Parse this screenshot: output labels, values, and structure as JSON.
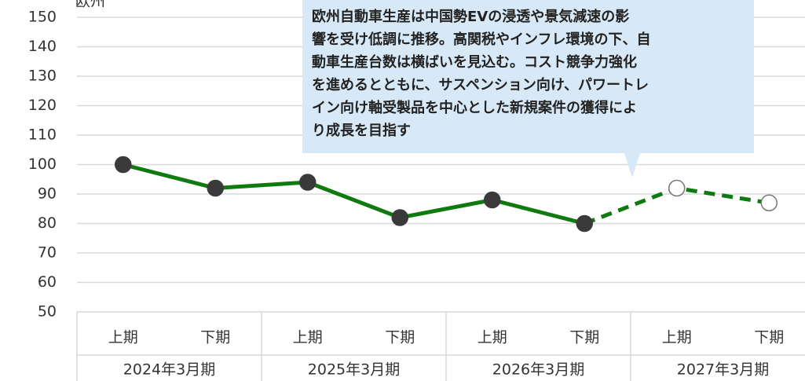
{
  "chart_data": {
    "type": "line",
    "title": "欧州",
    "categories": [
      "上期",
      "下期",
      "上期",
      "下期",
      "上期",
      "下期",
      "上期",
      "下期"
    ],
    "groups": [
      "2024年3月期",
      "2025年3月期",
      "2026年3月期",
      "2027年3月期"
    ],
    "values": [
      100,
      92,
      94,
      82,
      88,
      80,
      92,
      87
    ],
    "forecast_start": 5,
    "color": "#0f7a0f",
    "ylim": [
      50,
      150
    ],
    "yticks": [
      50,
      60,
      70,
      80,
      90,
      100,
      110,
      120,
      130,
      140,
      150
    ],
    "grid": true,
    "annotation": [
      "欧州自動車生産は中国勢EVの浸透や景気減速の影",
      "響を受け低調に推移。高関税やインフレ環境の下、自",
      "動車生産台数は横ばいを見込む。コスト競争力強化",
      "を進めるとともに、サスペンション向け、パワートレ",
      "イン向け軸受製品を中心とした新規案件の獲得によ",
      "り成長を目指す"
    ]
  }
}
